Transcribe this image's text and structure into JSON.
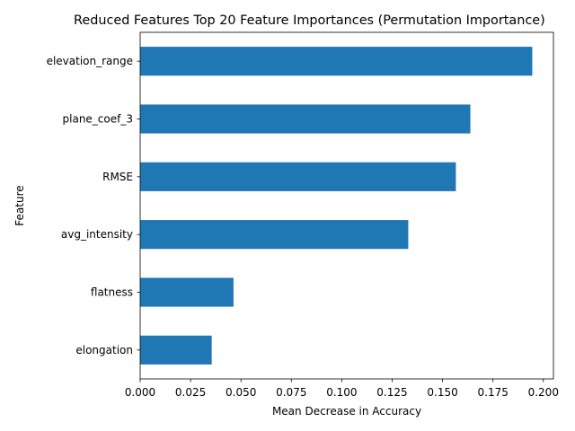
{
  "chart_data": {
    "type": "bar",
    "orientation": "horizontal",
    "title": "Reduced Features Top 20 Feature Importances (Permutation Importance)",
    "xlabel": "Mean Decrease in Accuracy",
    "ylabel": "Feature",
    "xlim": [
      0.0,
      0.205
    ],
    "xticks": [
      "0.000",
      "0.025",
      "0.050",
      "0.075",
      "0.100",
      "0.125",
      "0.150",
      "0.175",
      "0.200"
    ],
    "categories": [
      "elevation_range",
      "plane_coef_3",
      "RMSE",
      "avg_intensity",
      "flatness",
      "elongation"
    ],
    "values": [
      0.1945,
      0.1638,
      0.1566,
      0.133,
      0.0463,
      0.0355
    ],
    "bar_color": "#1f77b4",
    "grid": false,
    "legend": "none"
  }
}
